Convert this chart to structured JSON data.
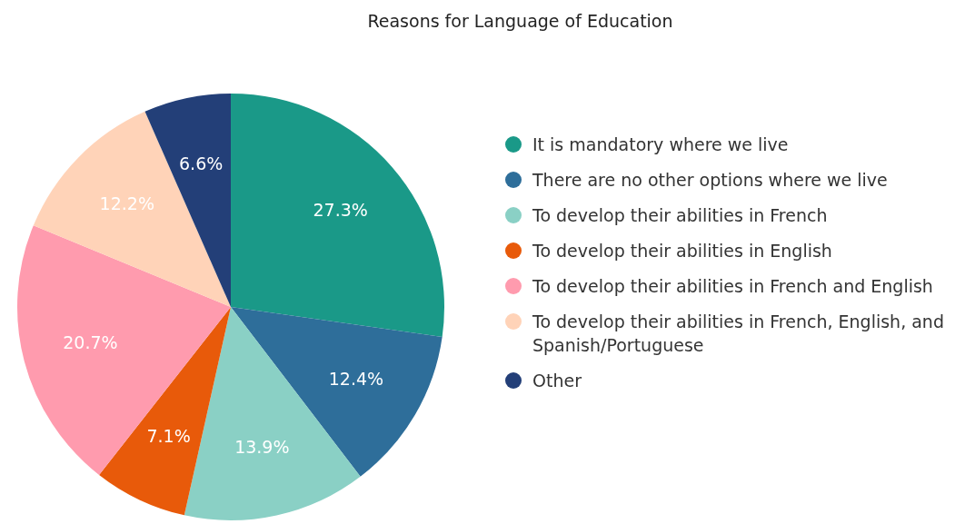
{
  "chart_data": {
    "type": "pie",
    "title": "Reasons for Language of Education",
    "categories": [
      "It is mandatory where we live",
      "There are no other options where we live",
      "To develop their abilities in French",
      "To develop their abilities in English",
      "To develop their abilities in French and English",
      "To develop their abilities in French, English, and Spanish/Portuguese",
      "Other"
    ],
    "values": [
      27.3,
      12.4,
      13.9,
      7.1,
      20.7,
      12.2,
      6.6
    ],
    "value_labels": [
      "27.3%",
      "12.4%",
      "13.9%",
      "7.1%",
      "20.7%",
      "12.2%",
      "6.6%"
    ],
    "colors": [
      "#1a9988",
      "#2e6e9a",
      "#8ad0c5",
      "#e85a0a",
      "#ff9bae",
      "#ffd3b8",
      "#233f78"
    ],
    "legend": "right"
  }
}
